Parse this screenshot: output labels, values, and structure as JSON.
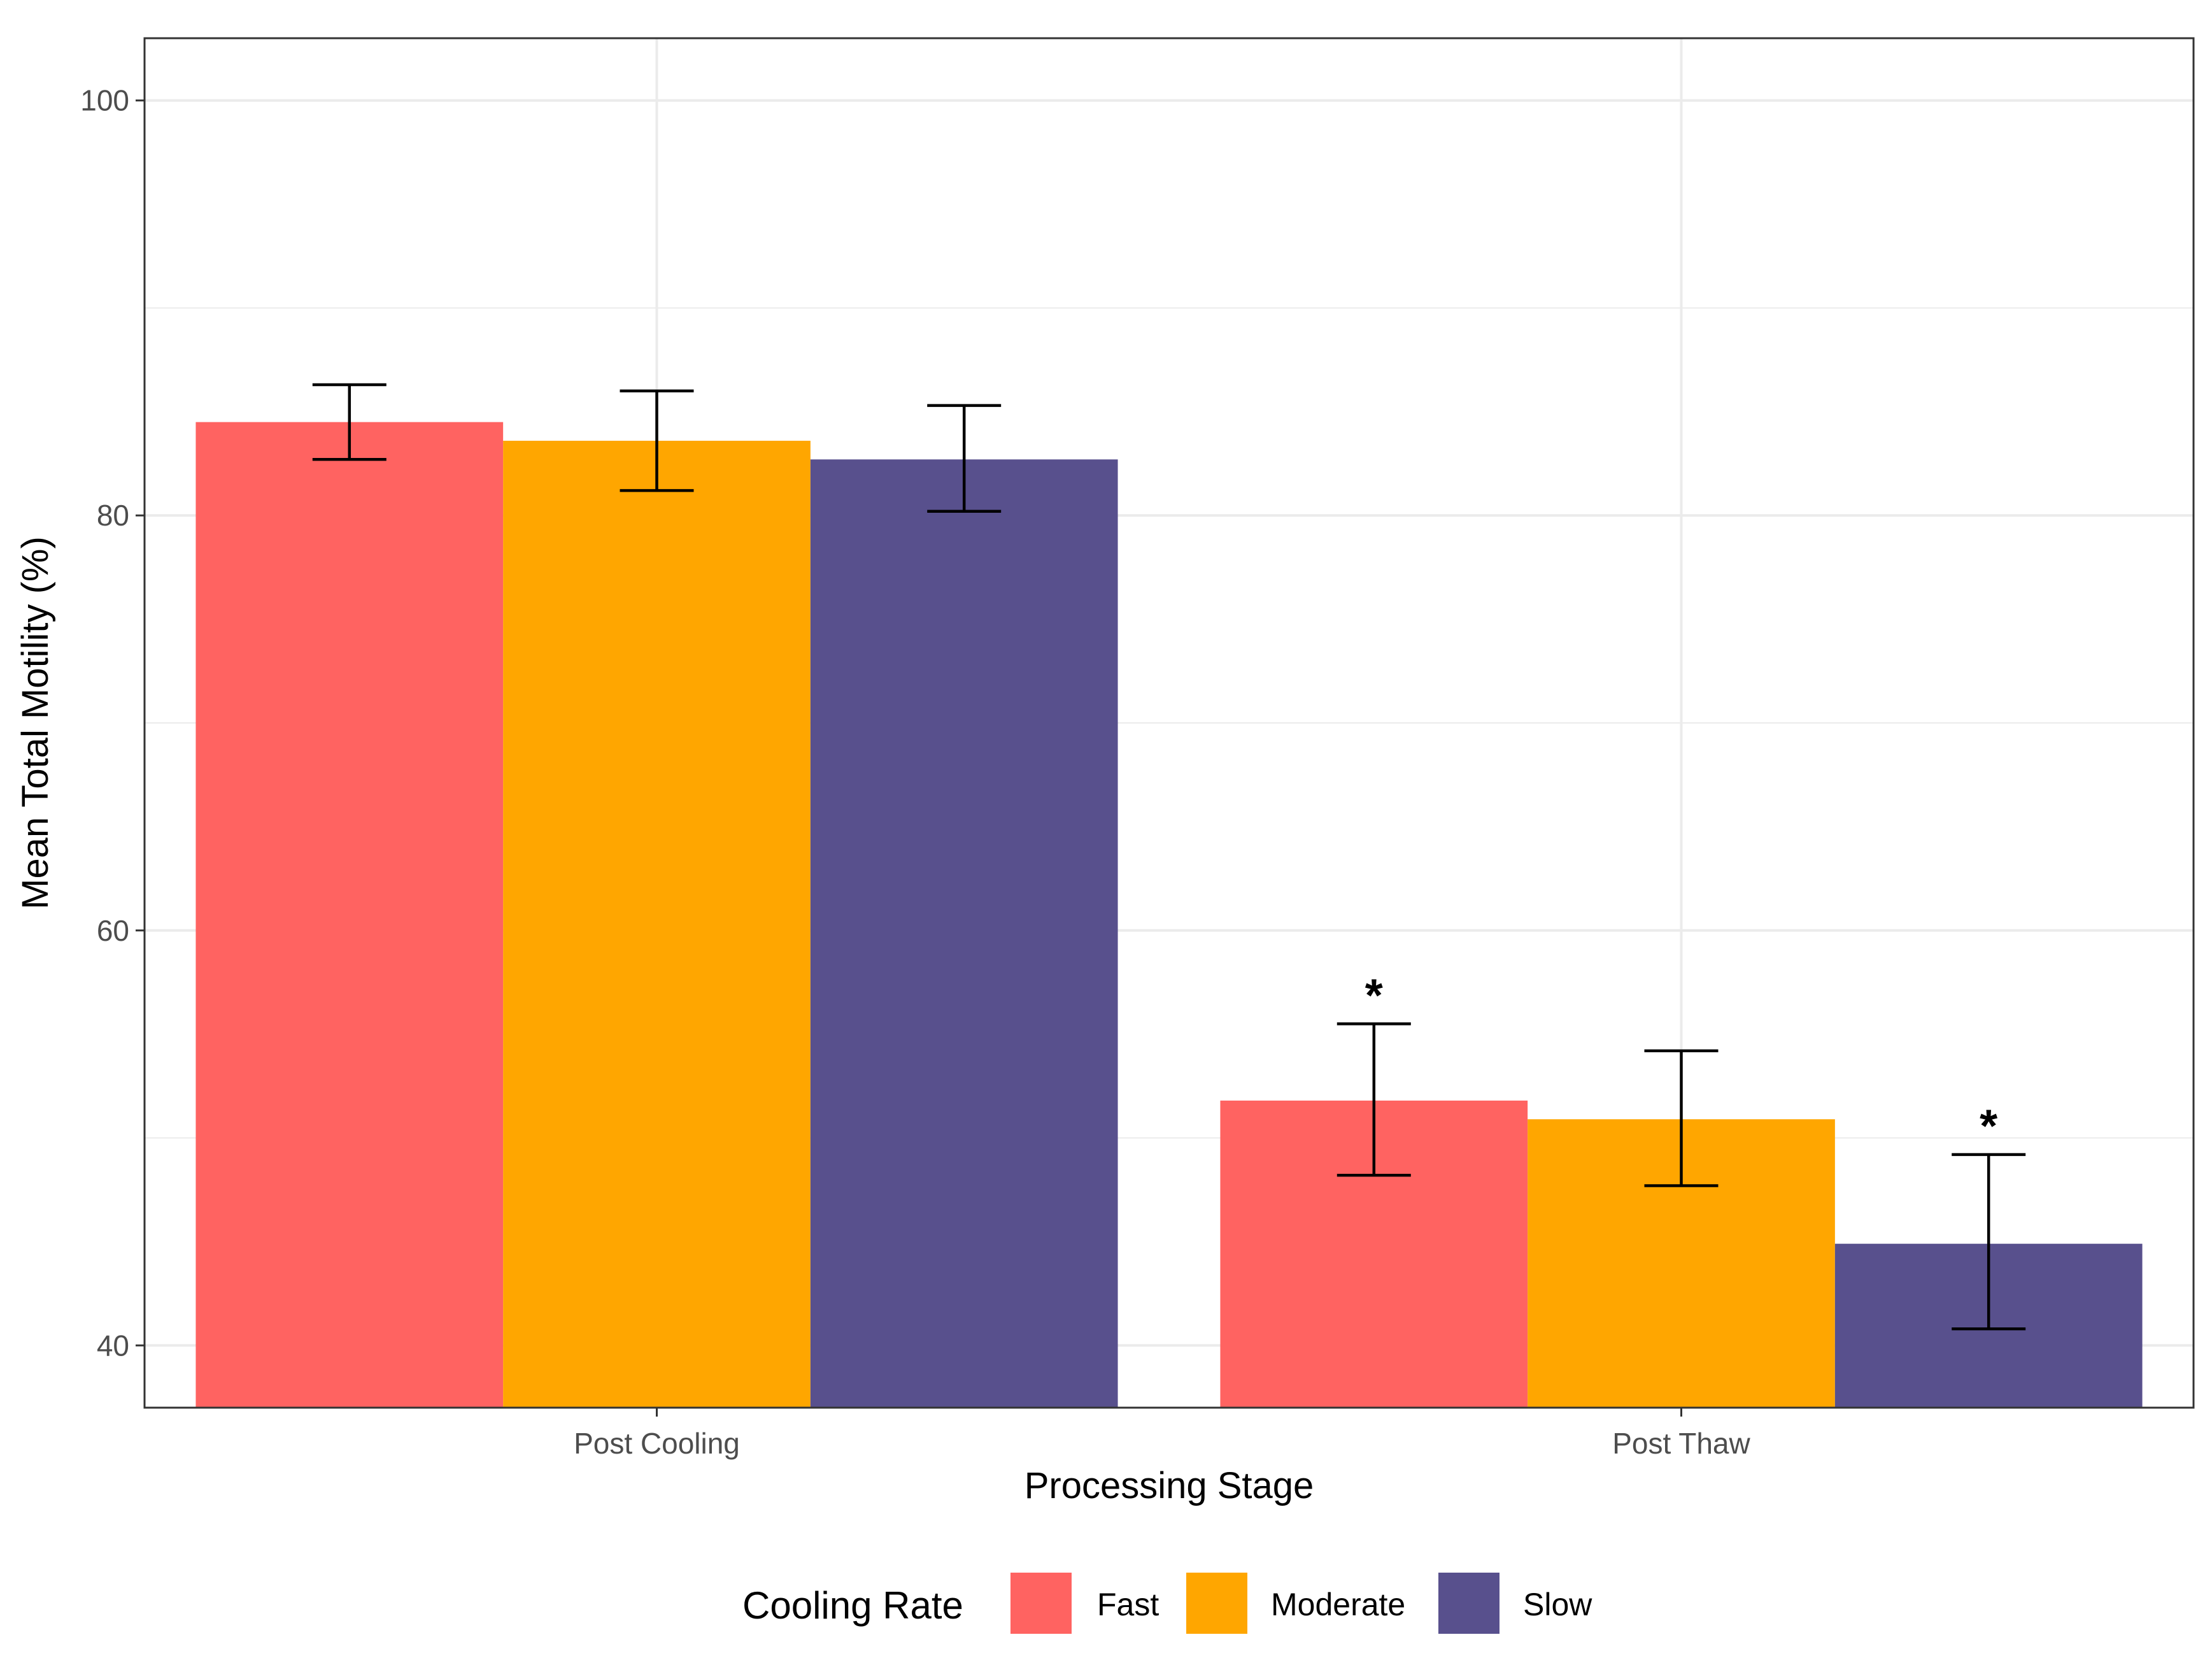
{
  "chart_data": {
    "type": "bar",
    "title": "",
    "xlabel": "Processing Stage",
    "ylabel": "Mean Total Motility (%)",
    "ylim": [
      37,
      103
    ],
    "yticks": [
      40,
      60,
      80,
      100
    ],
    "y_minor_ticks": [
      50,
      70,
      90
    ],
    "categories": [
      "Post Cooling",
      "Post Thaw"
    ],
    "series": [
      {
        "name": "Fast",
        "color": "#FF6361",
        "values": [
          84.5,
          51.8
        ],
        "err_low": [
          82.7,
          48.2
        ],
        "err_high": [
          86.3,
          55.5
        ]
      },
      {
        "name": "Moderate",
        "color": "#FFA600",
        "values": [
          83.6,
          50.9
        ],
        "err_low": [
          81.2,
          47.7
        ],
        "err_high": [
          86.0,
          54.2
        ]
      },
      {
        "name": "Slow",
        "color": "#58508D",
        "values": [
          82.7,
          44.9
        ],
        "err_low": [
          80.2,
          40.8
        ],
        "err_high": [
          85.3,
          49.2
        ]
      }
    ],
    "annotations": [
      {
        "category": "Post Thaw",
        "series": "Fast",
        "text": "*"
      },
      {
        "category": "Post Thaw",
        "series": "Slow",
        "text": "*"
      }
    ],
    "legend": {
      "title": "Cooling Rate",
      "position": "bottom"
    },
    "grid": true
  }
}
